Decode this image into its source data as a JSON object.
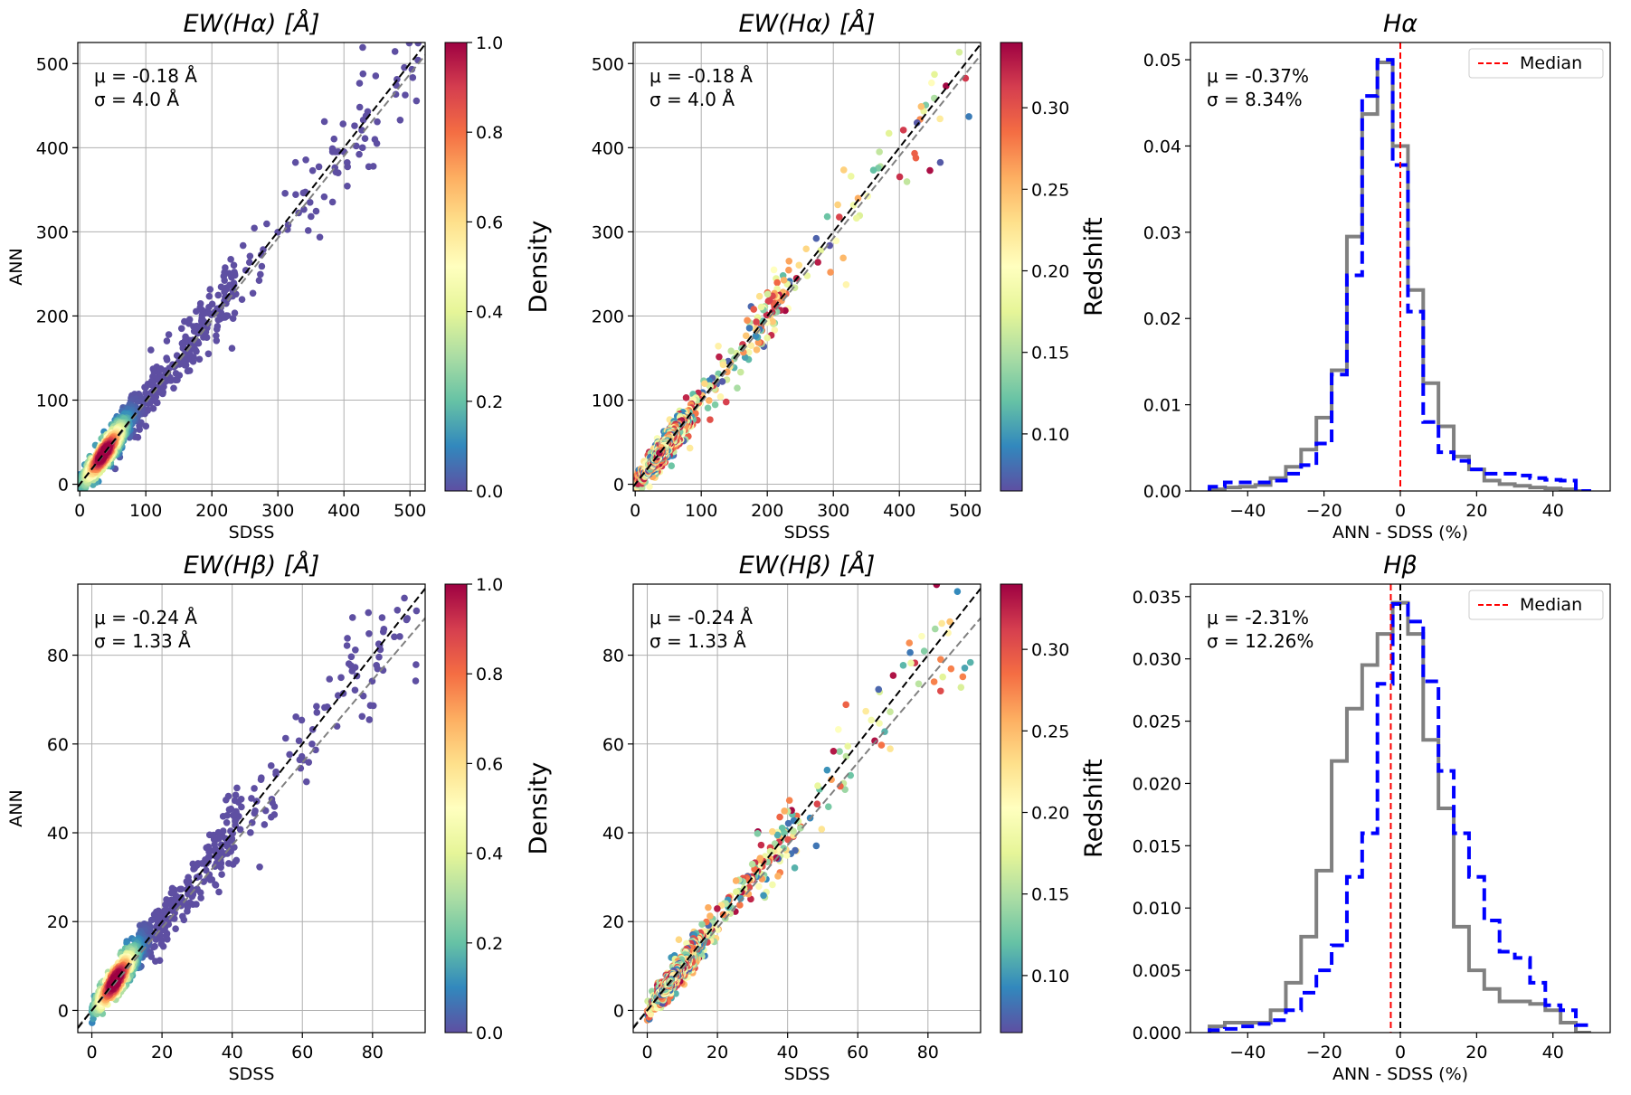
{
  "figure": {
    "description_label": "EW comparison figure"
  },
  "colors": {
    "density_low": "#5e4fa2",
    "grid": "#b0b0b0",
    "one_to_one": "#000000",
    "fit": "#808080",
    "hist_blue": "#0000ff",
    "hist_gray": "#808080",
    "median": "#ff0000"
  },
  "chart_data": [
    {
      "id": "p1",
      "type": "scatter",
      "title": "EW(Hα) [Å]",
      "xlabel": "SDSS",
      "ylabel": "ANN",
      "xlim": [
        -3,
        523
      ],
      "ylim": [
        -8,
        525
      ],
      "xticks": [
        0,
        100,
        200,
        300,
        400,
        500
      ],
      "yticks": [
        0,
        100,
        200,
        300,
        400,
        500
      ],
      "stats": [
        "μ = -0.18 Å",
        "σ = 4.0 Å"
      ],
      "colorbar": {
        "label": "Density",
        "range": [
          0,
          1
        ],
        "ticks": [
          "0.0",
          "0.2",
          "0.4",
          "0.6",
          "0.8",
          "1.0"
        ]
      },
      "fit_slope": 0.975,
      "n_points": 900,
      "color_mode": "density"
    },
    {
      "id": "p2",
      "type": "scatter",
      "title": "EW(Hα) [Å]",
      "xlabel": "SDSS",
      "ylabel": "",
      "xlim": [
        -3,
        523
      ],
      "ylim": [
        -8,
        525
      ],
      "xticks": [
        0,
        100,
        200,
        300,
        400,
        500
      ],
      "yticks": [
        0,
        100,
        200,
        300,
        400,
        500
      ],
      "stats": [
        "μ = -0.18 Å",
        "σ = 4.0 Å"
      ],
      "colorbar": {
        "label": "Redshift",
        "range": [
          0.065,
          0.34
        ],
        "ticks": [
          "0.10",
          "0.15",
          "0.20",
          "0.25",
          "0.30"
        ]
      },
      "fit_slope": 0.975,
      "n_points": 600,
      "color_mode": "redshift"
    },
    {
      "id": "p3",
      "type": "histogram",
      "title": "Hα",
      "xlabel": "ANN - SDSS (%)",
      "ylabel": "",
      "xlim": [
        -55,
        55
      ],
      "ylim": [
        0,
        0.052
      ],
      "xticks": [
        -40,
        -20,
        0,
        20,
        40
      ],
      "yticks": [
        "0.00",
        "0.01",
        "0.02",
        "0.03",
        "0.04",
        "0.05"
      ],
      "stats": [
        "μ = -0.37%",
        "σ = 8.34%"
      ],
      "legend": "Median",
      "median": 0.0,
      "bin_edges": [
        -50,
        -46,
        -42,
        -38,
        -34,
        -30,
        -26,
        -22,
        -18,
        -14,
        -10,
        -6,
        -2,
        2,
        6,
        10,
        14,
        18,
        22,
        26,
        30,
        34,
        38,
        42,
        46,
        50
      ],
      "blue": [
        0.0005,
        0.001,
        0.001,
        0.001,
        0.0012,
        0.002,
        0.003,
        0.0055,
        0.0135,
        0.025,
        0.0458,
        0.05,
        0.0378,
        0.0208,
        0.008,
        0.0045,
        0.0035,
        0.0025,
        0.002,
        0.002,
        0.0018,
        0.0015,
        0.0013,
        0.0012,
        0.0
      ],
      "gray": [
        0.0002,
        0.0004,
        0.0005,
        0.0007,
        0.0015,
        0.0028,
        0.0048,
        0.0085,
        0.014,
        0.0295,
        0.0437,
        0.0497,
        0.04,
        0.0233,
        0.0125,
        0.0075,
        0.004,
        0.0025,
        0.0012,
        0.0008,
        0.0006,
        0.0004,
        0.0003,
        0.0002,
        0.0
      ]
    },
    {
      "id": "p4",
      "type": "scatter",
      "title": "EW(Hβ) [Å]",
      "xlabel": "SDSS",
      "ylabel": "ANN",
      "xlim": [
        -4,
        95
      ],
      "ylim": [
        -5,
        96
      ],
      "xticks": [
        0,
        20,
        40,
        60,
        80
      ],
      "yticks": [
        0,
        20,
        40,
        60,
        80
      ],
      "stats": [
        "μ = -0.24 Å",
        "σ = 1.33 Å"
      ],
      "colorbar": {
        "label": "Density",
        "range": [
          0,
          1
        ],
        "ticks": [
          "0.0",
          "0.2",
          "0.4",
          "0.6",
          "0.8",
          "1.0"
        ]
      },
      "fit_slope": 0.93,
      "n_points": 900,
      "color_mode": "density"
    },
    {
      "id": "p5",
      "type": "scatter",
      "title": "EW(Hβ) [Å]",
      "xlabel": "SDSS",
      "ylabel": "",
      "xlim": [
        -4,
        95
      ],
      "ylim": [
        -5,
        96
      ],
      "xticks": [
        0,
        20,
        40,
        60,
        80
      ],
      "yticks": [
        0,
        20,
        40,
        60,
        80
      ],
      "stats": [
        "μ = -0.24 Å",
        "σ = 1.33 Å"
      ],
      "colorbar": {
        "label": "Redshift",
        "range": [
          0.065,
          0.34
        ],
        "ticks": [
          "0.10",
          "0.15",
          "0.20",
          "0.25",
          "0.30"
        ]
      },
      "fit_slope": 0.93,
      "n_points": 600,
      "color_mode": "redshift"
    },
    {
      "id": "p6",
      "type": "histogram",
      "title": "Hβ",
      "xlabel": "ANN - SDSS (%)",
      "ylabel": "",
      "xlim": [
        -55,
        55
      ],
      "ylim": [
        0,
        0.036
      ],
      "xticks": [
        -40,
        -20,
        0,
        20,
        40
      ],
      "yticks": [
        "0.000",
        "0.005",
        "0.010",
        "0.015",
        "0.020",
        "0.025",
        "0.030",
        "0.035"
      ],
      "stats": [
        "μ = -2.31%",
        "σ = 12.26%"
      ],
      "legend": "Median",
      "median": -2.5,
      "bin_edges": [
        -50,
        -46,
        -42,
        -38,
        -34,
        -30,
        -26,
        -22,
        -18,
        -14,
        -10,
        -6,
        -2,
        2,
        6,
        10,
        14,
        18,
        22,
        26,
        30,
        34,
        38,
        42,
        46,
        50
      ],
      "blue": [
        0.0002,
        0.0003,
        0.0005,
        0.0007,
        0.001,
        0.0018,
        0.0032,
        0.005,
        0.007,
        0.0125,
        0.016,
        0.028,
        0.0344,
        0.033,
        0.0282,
        0.021,
        0.016,
        0.0125,
        0.009,
        0.0065,
        0.006,
        0.004,
        0.0022,
        0.0018,
        0.0006
      ],
      "gray": [
        0.0005,
        0.0008,
        0.0008,
        0.0008,
        0.0018,
        0.004,
        0.0077,
        0.013,
        0.0218,
        0.026,
        0.0295,
        0.032,
        0.0345,
        0.032,
        0.0235,
        0.018,
        0.0085,
        0.005,
        0.0035,
        0.0025,
        0.0025,
        0.0023,
        0.0018,
        0.0008,
        0.0
      ]
    }
  ]
}
